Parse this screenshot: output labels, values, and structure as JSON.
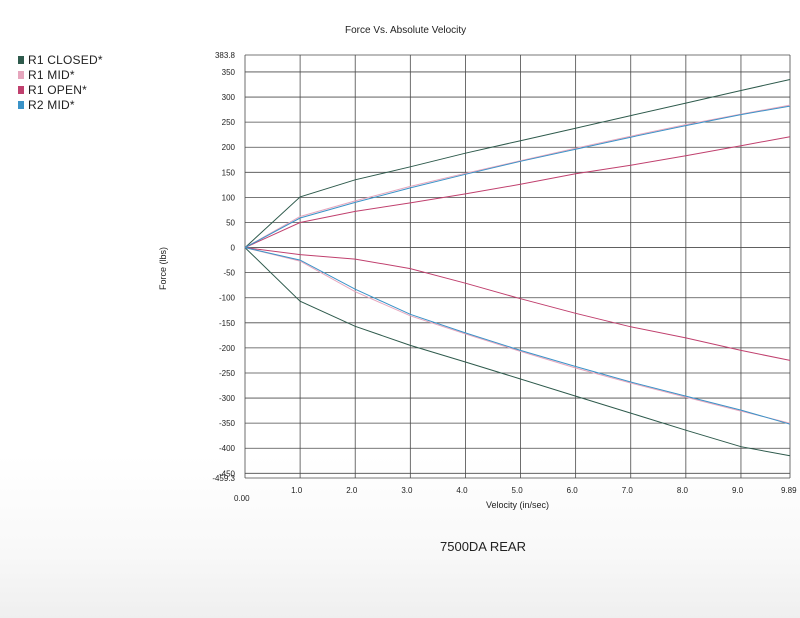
{
  "chart_data": {
    "type": "line",
    "title": "Force Vs. Absolute Velocity",
    "xlabel": "Velocity (in/sec)",
    "ylabel": "Force (lbs)",
    "caption": "7500DA REAR",
    "xlim": [
      0,
      9.89
    ],
    "ylim": [
      -459.3,
      383.8
    ],
    "x_ticks": [
      "0.00",
      "1.0",
      "2.0",
      "3.0",
      "4.0",
      "5.0",
      "6.0",
      "7.0",
      "8.0",
      "9.0",
      "9.89"
    ],
    "y_ticks": [
      "383.8",
      "350",
      "300",
      "250",
      "200",
      "150",
      "100",
      "50",
      "0",
      "-50",
      "-100",
      "-150",
      "-200",
      "-250",
      "-300",
      "-350",
      "-400",
      "-450",
      "-459.3"
    ],
    "grid": true,
    "legend_position": "top-left",
    "series": [
      {
        "name": "R1 CLOSED*",
        "color": "#2e5a4c",
        "x": [
          0,
          1,
          2,
          3,
          4,
          5,
          6,
          7,
          8,
          9,
          9.89
        ],
        "compression": [
          0,
          101,
          135,
          161,
          188,
          213,
          238,
          263,
          288,
          313,
          335
        ],
        "rebound": [
          0,
          -107,
          -157,
          -195,
          -228,
          -262,
          -296,
          -330,
          -364,
          -397,
          -415
        ]
      },
      {
        "name": "R1 MID*",
        "color": "#e6a6bd",
        "x": [
          0,
          1,
          2,
          3,
          4,
          5,
          6,
          7,
          8,
          9,
          9.89
        ],
        "compression": [
          0,
          62,
          93,
          122,
          148,
          173,
          198,
          222,
          245,
          266,
          284
        ],
        "rebound": [
          0,
          -27,
          -88,
          -136,
          -172,
          -207,
          -240,
          -270,
          -298,
          -326,
          -350
        ]
      },
      {
        "name": "R1 OPEN*",
        "color": "#c0406e",
        "x": [
          0,
          1,
          2,
          3,
          4,
          5,
          6,
          7,
          8,
          9,
          9.89
        ],
        "compression": [
          0,
          50,
          72,
          89,
          107,
          126,
          147,
          164,
          183,
          203,
          221
        ],
        "rebound": [
          0,
          -14,
          -23,
          -42,
          -71,
          -102,
          -131,
          -158,
          -180,
          -205,
          -225
        ]
      },
      {
        "name": "R2 MID*",
        "color": "#3a93c8",
        "x": [
          0,
          1,
          2,
          3,
          4,
          5,
          6,
          7,
          8,
          9,
          9.89
        ],
        "compression": [
          0,
          59,
          90,
          119,
          146,
          172,
          196,
          220,
          243,
          265,
          282
        ],
        "rebound": [
          0,
          -25,
          -83,
          -133,
          -170,
          -205,
          -237,
          -268,
          -296,
          -324,
          -352
        ]
      }
    ]
  }
}
